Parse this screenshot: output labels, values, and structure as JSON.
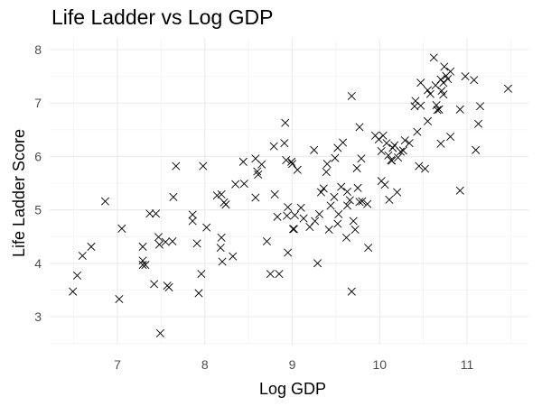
{
  "chart_data": {
    "type": "scatter",
    "title": "Life Ladder vs Log GDP",
    "xlabel": "Log GDP",
    "ylabel": "Life Ladder Score",
    "xlim": [
      6.35,
      11.6
    ],
    "ylim": [
      2.55,
      8.1
    ],
    "x_ticks": [
      7,
      8,
      9,
      10,
      11
    ],
    "y_ticks": [
      3,
      4,
      5,
      6,
      7,
      8
    ],
    "marker": "x",
    "grid": true,
    "points": [
      [
        6.49,
        3.47
      ],
      [
        6.54,
        3.77
      ],
      [
        6.6,
        4.14
      ],
      [
        6.7,
        4.31
      ],
      [
        6.86,
        5.16
      ],
      [
        7.02,
        3.33
      ],
      [
        7.05,
        4.65
      ],
      [
        7.29,
        4.31
      ],
      [
        7.29,
        4.05
      ],
      [
        7.29,
        3.97
      ],
      [
        7.32,
        3.97
      ],
      [
        7.37,
        4.93
      ],
      [
        7.42,
        3.61
      ],
      [
        7.44,
        4.93
      ],
      [
        7.47,
        4.49
      ],
      [
        7.48,
        4.35
      ],
      [
        7.49,
        2.69
      ],
      [
        7.55,
        4.4
      ],
      [
        7.57,
        3.58
      ],
      [
        7.59,
        3.55
      ],
      [
        7.63,
        4.41
      ],
      [
        7.64,
        5.24
      ],
      [
        7.67,
        5.82
      ],
      [
        7.86,
        4.79
      ],
      [
        7.86,
        4.91
      ],
      [
        7.91,
        4.37
      ],
      [
        7.93,
        3.44
      ],
      [
        7.96,
        3.8
      ],
      [
        7.98,
        5.82
      ],
      [
        8.02,
        4.67
      ],
      [
        8.14,
        5.27
      ],
      [
        8.18,
        4.29
      ],
      [
        8.19,
        4.48
      ],
      [
        8.19,
        5.29
      ],
      [
        8.2,
        4.03
      ],
      [
        8.22,
        5.14
      ],
      [
        8.24,
        5.1
      ],
      [
        8.32,
        4.13
      ],
      [
        8.35,
        5.48
      ],
      [
        8.44,
        5.9
      ],
      [
        8.45,
        5.49
      ],
      [
        8.58,
        5.96
      ],
      [
        8.58,
        5.23
      ],
      [
        8.6,
        5.72
      ],
      [
        8.61,
        5.66
      ],
      [
        8.65,
        5.85
      ],
      [
        8.71,
        4.41
      ],
      [
        8.75,
        3.8
      ],
      [
        8.79,
        6.19
      ],
      [
        8.8,
        5.29
      ],
      [
        8.83,
        4.87
      ],
      [
        8.85,
        3.8
      ],
      [
        8.91,
        6.25
      ],
      [
        8.92,
        6.63
      ],
      [
        8.93,
        5.93
      ],
      [
        8.94,
        4.89
      ],
      [
        8.95,
        4.2
      ],
      [
        8.95,
        5.05
      ],
      [
        8.99,
        5.9
      ],
      [
        9.0,
        5.86
      ],
      [
        9.01,
        4.64
      ],
      [
        9.02,
        4.64
      ],
      [
        9.03,
        4.9
      ],
      [
        9.06,
        5.75
      ],
      [
        9.1,
        5.04
      ],
      [
        9.13,
        4.84
      ],
      [
        9.2,
        4.68
      ],
      [
        9.25,
        6.12
      ],
      [
        9.26,
        4.79
      ],
      [
        9.29,
        4.0
      ],
      [
        9.31,
        4.92
      ],
      [
        9.33,
        5.33
      ],
      [
        9.36,
        5.4
      ],
      [
        9.39,
        5.71
      ],
      [
        9.4,
        5.86
      ],
      [
        9.42,
        4.63
      ],
      [
        9.44,
        5.08
      ],
      [
        9.48,
        5.24
      ],
      [
        9.49,
        5.97
      ],
      [
        9.52,
        4.74
      ],
      [
        9.52,
        6.16
      ],
      [
        9.53,
        4.92
      ],
      [
        9.56,
        5.43
      ],
      [
        9.58,
        6.26
      ],
      [
        9.62,
        4.48
      ],
      [
        9.63,
        5.08
      ],
      [
        9.63,
        5.34
      ],
      [
        9.66,
        5.18
      ],
      [
        9.68,
        3.47
      ],
      [
        9.68,
        7.13
      ],
      [
        9.7,
        4.79
      ],
      [
        9.72,
        4.63
      ],
      [
        9.74,
        5.78
      ],
      [
        9.75,
        5.41
      ],
      [
        9.77,
        5.15
      ],
      [
        9.77,
        6.55
      ],
      [
        9.79,
        5.96
      ],
      [
        9.8,
        5.16
      ],
      [
        9.86,
        5.11
      ],
      [
        9.87,
        4.29
      ],
      [
        9.95,
        6.39
      ],
      [
        9.99,
        6.32
      ],
      [
        10.02,
        5.54
      ],
      [
        10.02,
        6.1
      ],
      [
        10.04,
        6.39
      ],
      [
        10.06,
        5.47
      ],
      [
        10.08,
        6.25
      ],
      [
        10.1,
        6.02
      ],
      [
        10.11,
        5.19
      ],
      [
        10.13,
        5.93
      ],
      [
        10.14,
        5.92
      ],
      [
        10.15,
        6.16
      ],
      [
        10.17,
        6.21
      ],
      [
        10.2,
        5.33
      ],
      [
        10.21,
        5.98
      ],
      [
        10.24,
        6.09
      ],
      [
        10.27,
        6.11
      ],
      [
        10.29,
        6.3
      ],
      [
        10.34,
        6.25
      ],
      [
        10.4,
        6.94
      ],
      [
        10.41,
        7.04
      ],
      [
        10.43,
        6.46
      ],
      [
        10.45,
        5.82
      ],
      [
        10.47,
        7.38
      ],
      [
        10.47,
        6.95
      ],
      [
        10.52,
        5.77
      ],
      [
        10.55,
        7.24
      ],
      [
        10.55,
        6.66
      ],
      [
        10.58,
        7.17
      ],
      [
        10.62,
        7.85
      ],
      [
        10.64,
        7.33
      ],
      [
        10.65,
        6.96
      ],
      [
        10.66,
        6.87
      ],
      [
        10.68,
        6.88
      ],
      [
        10.7,
        7.44
      ],
      [
        10.7,
        6.24
      ],
      [
        10.71,
        7.23
      ],
      [
        10.73,
        7.16
      ],
      [
        10.73,
        7.38
      ],
      [
        10.74,
        7.68
      ],
      [
        10.76,
        7.51
      ],
      [
        10.78,
        7.45
      ],
      [
        10.81,
        7.59
      ],
      [
        10.81,
        6.37
      ],
      [
        10.92,
        6.88
      ],
      [
        10.92,
        5.36
      ],
      [
        10.98,
        7.5
      ],
      [
        11.08,
        7.43
      ],
      [
        11.1,
        6.12
      ],
      [
        11.13,
        6.61
      ],
      [
        11.15,
        6.94
      ],
      [
        11.47,
        7.27
      ]
    ]
  }
}
